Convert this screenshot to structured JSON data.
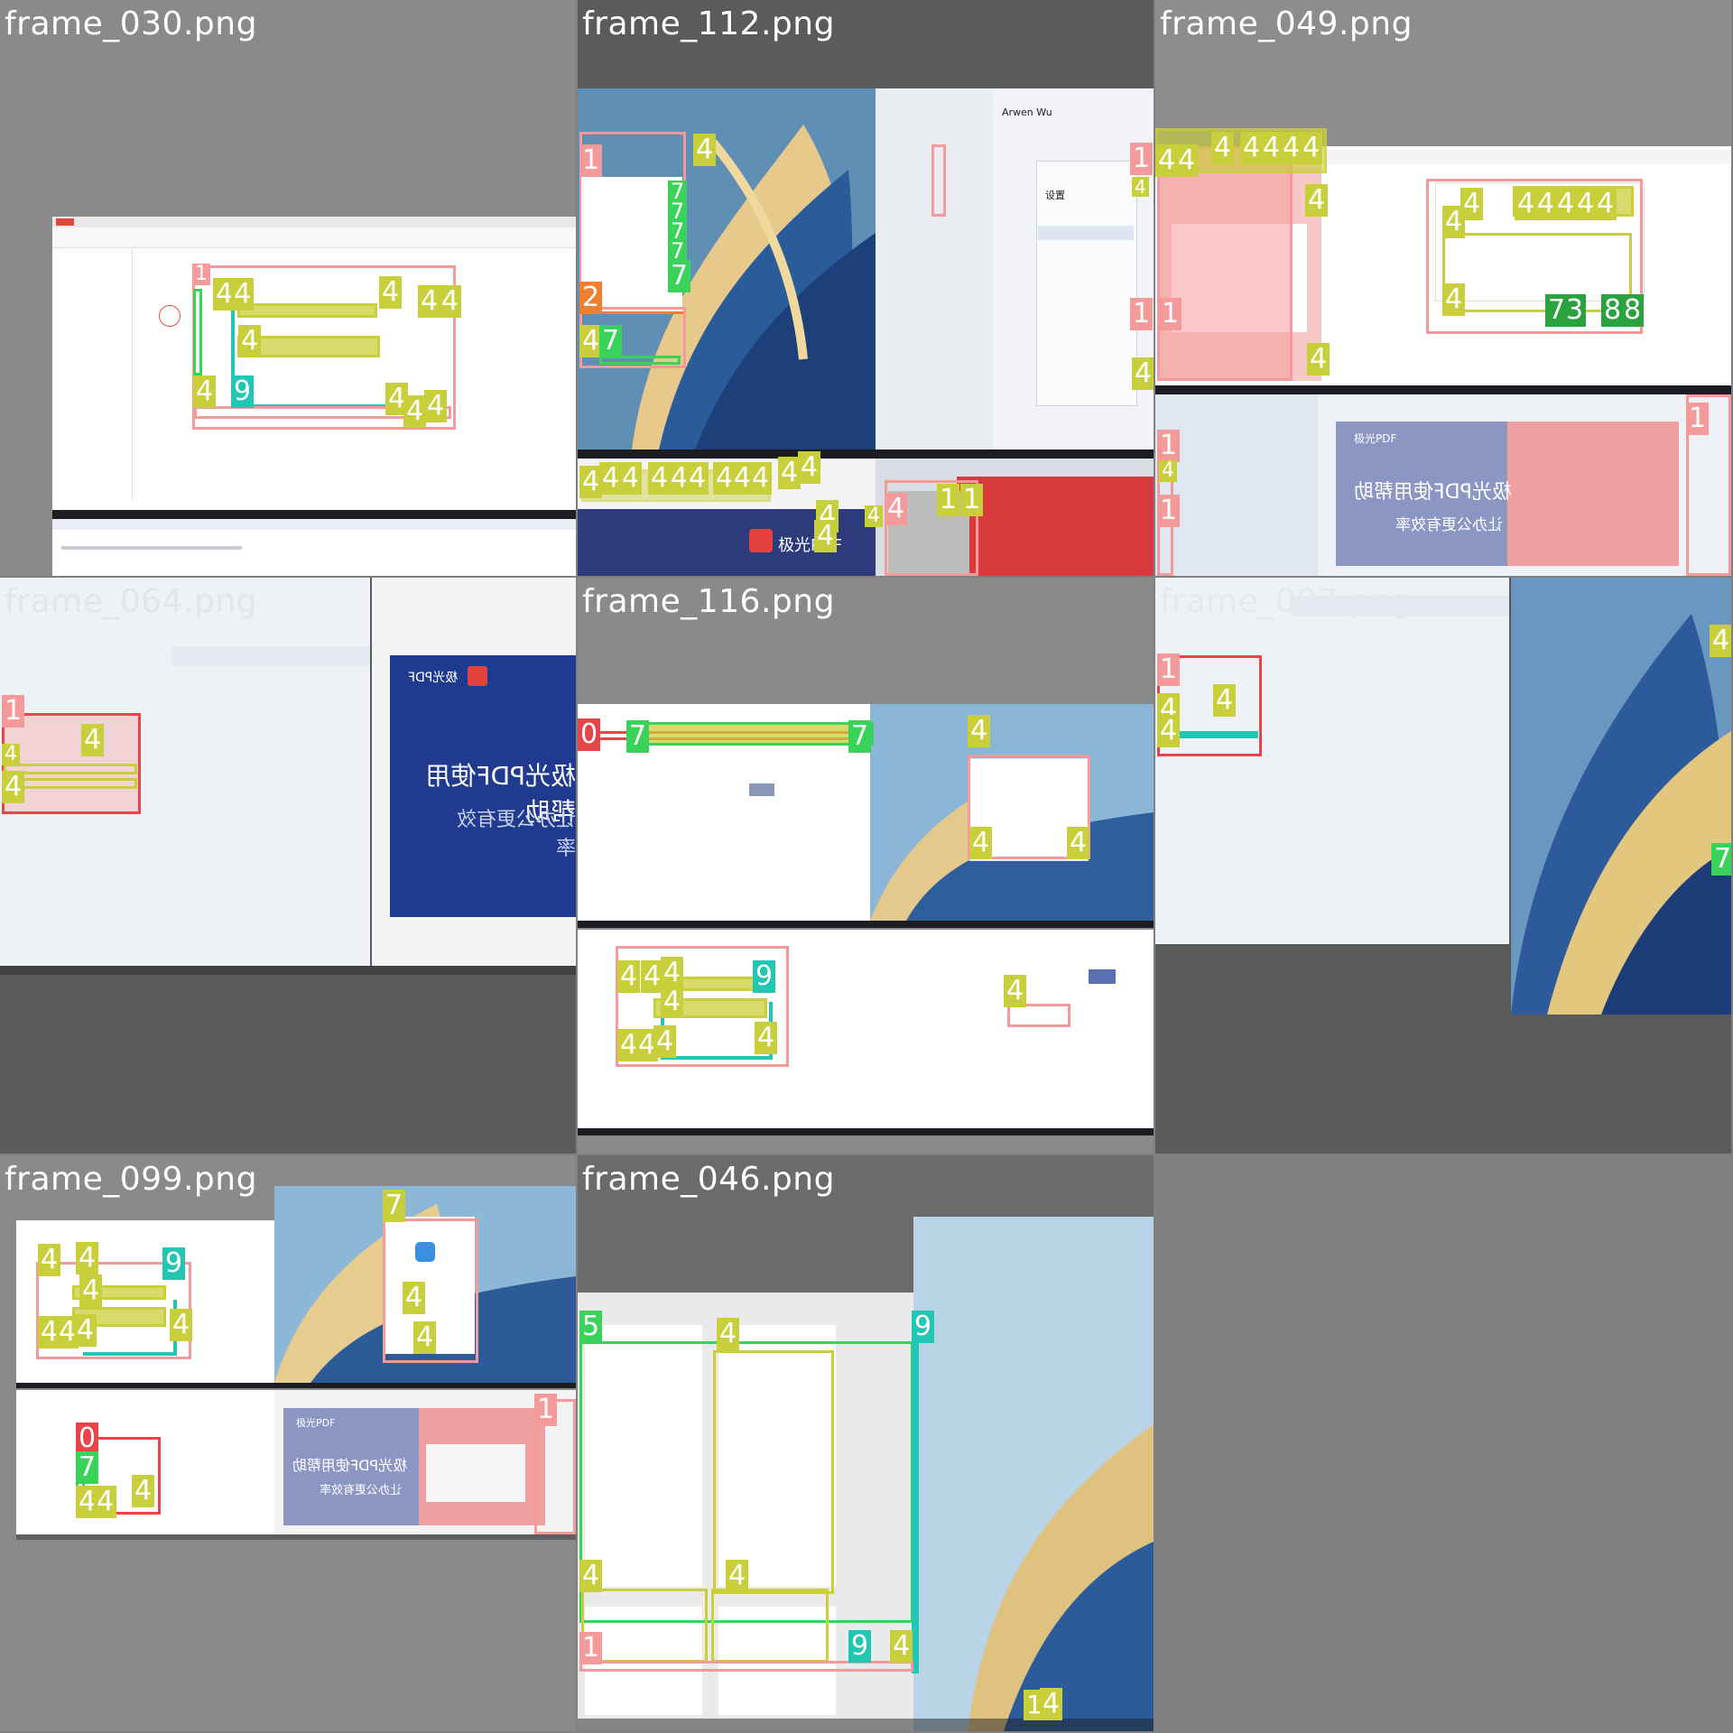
{
  "grid": {
    "tiles": [
      {
        "title": "frame_030.png"
      },
      {
        "title": "frame_112.png"
      },
      {
        "title": "frame_049.png"
      },
      {
        "title": "frame_064.png"
      },
      {
        "title": "frame_116.png"
      },
      {
        "title": "frame_097.png"
      },
      {
        "title": "frame_099.png"
      },
      {
        "title": "frame_046.png"
      }
    ]
  },
  "colors": {
    "class_1": "#f59a9a",
    "class_4": "#c9cf3a",
    "class_7": "#39d35a",
    "class_8": "#2aa33f",
    "class_9": "#22c7b3",
    "class_0": "#e8444a",
    "class_2": "#f08030",
    "class_5": "#39d35a"
  },
  "frame_112": {
    "chat_user": "Arwen Wu",
    "settings_title": "设置",
    "brand": "极光PDF"
  },
  "frame_049": {
    "brand_small": "极光PDF",
    "banner_title": "极光PDF使用帮助",
    "banner_sub": "让办公更有效率"
  },
  "frame_064": {
    "brand_small": "极光PDF",
    "banner_title": "极光PDF使用帮助",
    "banner_sub": "让办公更有效率"
  },
  "frame_099": {
    "brand_small": "极光PDF",
    "banner_title": "极光PDF使用帮助",
    "banner_sub": "让办公更有效率"
  },
  "labels": {
    "f030": [
      "1",
      "4",
      "4",
      "4",
      "4",
      "4",
      "4",
      "4",
      "9",
      "4",
      "4",
      "4"
    ],
    "f112": [
      "1",
      "4",
      "7",
      "7",
      "7",
      "7",
      "7",
      "2",
      "4",
      "7",
      "4",
      "4",
      "4",
      "4",
      "4",
      "4",
      "4",
      "4",
      "4",
      "4",
      "4",
      "4",
      "4",
      "1",
      "4",
      "4",
      "1",
      "4",
      "1",
      "1",
      "4"
    ],
    "f049": [
      "4",
      "4",
      "4",
      "4",
      "4",
      "4",
      "4",
      "4",
      "1",
      "4",
      "4",
      "4",
      "4",
      "4",
      "4",
      "4",
      "4",
      "4",
      "7",
      "3",
      "8",
      "8",
      "1",
      "1",
      "4",
      "1"
    ],
    "f064": [
      "1",
      "4",
      "4",
      "4"
    ],
    "f116": [
      "0",
      "7",
      "7",
      "4",
      "4",
      "4",
      "4",
      "4",
      "4",
      "9",
      "4",
      "4",
      "4",
      "4",
      "4",
      "4",
      "9",
      "4"
    ],
    "f097": [
      "1",
      "4",
      "4",
      "4",
      "4",
      "7"
    ],
    "f099": [
      "4",
      "4",
      "4",
      "9",
      "4",
      "4",
      "4",
      "4",
      "4",
      "7",
      "1",
      "4",
      "4",
      "1",
      "0",
      "7",
      "4",
      "4",
      "4"
    ],
    "f046": [
      "5",
      "4",
      "9",
      "4",
      "4",
      "1",
      "9",
      "4",
      "1",
      "4"
    ]
  }
}
